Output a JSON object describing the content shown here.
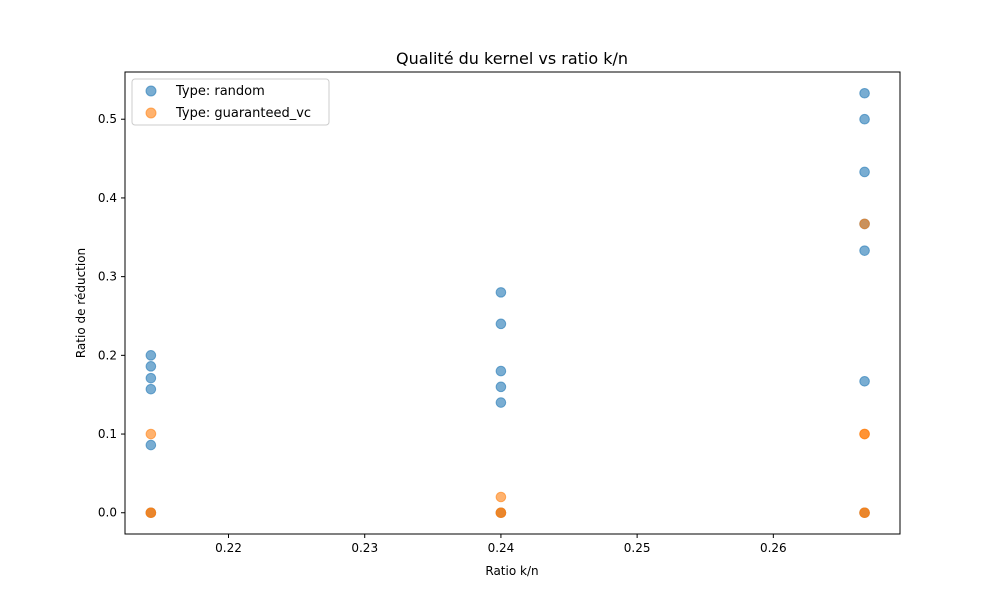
{
  "chart_data": {
    "type": "scatter",
    "title": "Qualité du kernel vs ratio k/n",
    "xlabel": "Ratio k/n",
    "ylabel": "Ratio de réduction",
    "xlim": [
      0.2124,
      0.2693
    ],
    "ylim": [
      -0.027,
      0.56
    ],
    "xticks": [
      0.22,
      0.23,
      0.24,
      0.25,
      0.26
    ],
    "xtick_labels": [
      "0.22",
      "0.23",
      "0.24",
      "0.25",
      "0.26"
    ],
    "yticks": [
      0.0,
      0.1,
      0.2,
      0.3,
      0.4,
      0.5
    ],
    "ytick_labels": [
      "0.0",
      "0.1",
      "0.2",
      "0.3",
      "0.4",
      "0.5"
    ],
    "grid": false,
    "legend_position": "top-left",
    "series": [
      {
        "name": "Type: random",
        "color": "#1f77b4",
        "points": [
          {
            "x": 0.2143,
            "y": 0.2
          },
          {
            "x": 0.2143,
            "y": 0.186
          },
          {
            "x": 0.2143,
            "y": 0.171
          },
          {
            "x": 0.2143,
            "y": 0.157
          },
          {
            "x": 0.2143,
            "y": 0.086
          },
          {
            "x": 0.2143,
            "y": 0.0
          },
          {
            "x": 0.24,
            "y": 0.28
          },
          {
            "x": 0.24,
            "y": 0.24
          },
          {
            "x": 0.24,
            "y": 0.18
          },
          {
            "x": 0.24,
            "y": 0.16
          },
          {
            "x": 0.24,
            "y": 0.14
          },
          {
            "x": 0.24,
            "y": 0.0
          },
          {
            "x": 0.2667,
            "y": 0.533
          },
          {
            "x": 0.2667,
            "y": 0.5
          },
          {
            "x": 0.2667,
            "y": 0.433
          },
          {
            "x": 0.2667,
            "y": 0.367
          },
          {
            "x": 0.2667,
            "y": 0.333
          },
          {
            "x": 0.2667,
            "y": 0.167
          },
          {
            "x": 0.2667,
            "y": 0.0
          }
        ]
      },
      {
        "name": "Type: guaranteed_vc",
        "color": "#ff7f0e",
        "points": [
          {
            "x": 0.2143,
            "y": 0.1
          },
          {
            "x": 0.2143,
            "y": 0.0
          },
          {
            "x": 0.2143,
            "y": 0.0
          },
          {
            "x": 0.24,
            "y": 0.02
          },
          {
            "x": 0.24,
            "y": 0.0
          },
          {
            "x": 0.24,
            "y": 0.0
          },
          {
            "x": 0.2667,
            "y": 0.367
          },
          {
            "x": 0.2667,
            "y": 0.1
          },
          {
            "x": 0.2667,
            "y": 0.1
          },
          {
            "x": 0.2667,
            "y": 0.0
          },
          {
            "x": 0.2667,
            "y": 0.0
          }
        ]
      }
    ]
  }
}
